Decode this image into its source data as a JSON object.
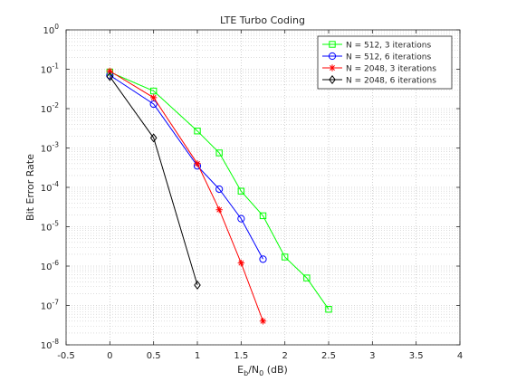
{
  "chart_data": {
    "type": "line",
    "title": "LTE Turbo Coding",
    "xlabel": {
      "main": "E",
      "sub1": "b",
      "mid": "/N",
      "sub2": "0",
      "tail": " (dB)"
    },
    "ylabel": "Bit Error Rate",
    "x_scale": "linear",
    "y_scale": "log",
    "xlim": [
      -0.5,
      4
    ],
    "ylim": [
      1e-08,
      1
    ],
    "xticks": [
      -0.5,
      0,
      0.5,
      1,
      1.5,
      2,
      2.5,
      3,
      3.5,
      4
    ],
    "xtick_labels": [
      "-0.5",
      "0",
      "0.5",
      "1",
      "1.5",
      "2",
      "2.5",
      "3",
      "3.5",
      "4"
    ],
    "yticks": [
      {
        "base": "10",
        "exp": "0",
        "value": 1
      },
      {
        "base": "10",
        "exp": "-1",
        "value": 0.1
      },
      {
        "base": "10",
        "exp": "-2",
        "value": 0.01
      },
      {
        "base": "10",
        "exp": "-3",
        "value": 0.001
      },
      {
        "base": "10",
        "exp": "-4",
        "value": 0.0001
      },
      {
        "base": "10",
        "exp": "-5",
        "value": 1e-05
      },
      {
        "base": "10",
        "exp": "-6",
        "value": 1e-06
      },
      {
        "base": "10",
        "exp": "-7",
        "value": 1e-07
      },
      {
        "base": "10",
        "exp": "-8",
        "value": 1e-08
      }
    ],
    "grid": true,
    "minor_grid": true,
    "legend_position": "top-right",
    "series": [
      {
        "name": "N = 512, 3 iterations",
        "color": "#00ff00",
        "marker": "square",
        "x": [
          0,
          0.5,
          1,
          1.25,
          1.5,
          1.75,
          2,
          2.25,
          2.5
        ],
        "y": [
          0.085,
          0.028,
          0.0027,
          0.00075,
          8e-05,
          1.9e-05,
          1.7e-06,
          5e-07,
          8e-08
        ]
      },
      {
        "name": "N = 512, 6 iterations",
        "color": "#0000ff",
        "marker": "circle",
        "x": [
          0,
          0.5,
          1,
          1.25,
          1.5,
          1.75
        ],
        "y": [
          0.07,
          0.013,
          0.00035,
          9e-05,
          1.6e-05,
          1.5e-06
        ]
      },
      {
        "name": "N = 2048, 3 iterations",
        "color": "#ff0000",
        "marker": "asterisk",
        "x": [
          0,
          0.5,
          1,
          1.25,
          1.5,
          1.75
        ],
        "y": [
          0.09,
          0.019,
          0.0004,
          2.7e-05,
          1.2e-06,
          4e-08
        ]
      },
      {
        "name": "N = 2048, 6 iterations",
        "color": "#000000",
        "marker": "diamond",
        "x": [
          0,
          0.5,
          1
        ],
        "y": [
          0.065,
          0.0018,
          3.3e-07
        ]
      }
    ]
  }
}
